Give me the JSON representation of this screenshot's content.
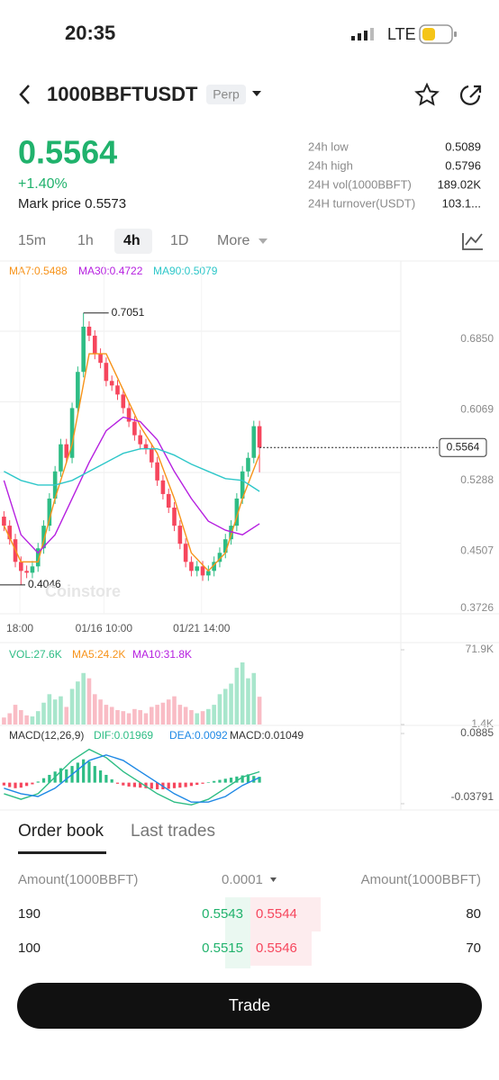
{
  "status_bar": {
    "time": "20:35",
    "network": "LTE"
  },
  "header": {
    "symbol": "1000BBFTUSDT",
    "badge": "Perp"
  },
  "ticker": {
    "price": "0.5564",
    "change": "+1.40%",
    "mark_price": "Mark price 0.5573",
    "stats": [
      {
        "label": "24h low",
        "value": "0.5089"
      },
      {
        "label": "24h high",
        "value": "0.5796"
      },
      {
        "label": "24H vol(1000BBFT)",
        "value": "189.02K"
      },
      {
        "label": "24H turnover(USDT)",
        "value": "103.1..."
      }
    ]
  },
  "intervals": {
    "items": [
      "15m",
      "1h",
      "4h",
      "1D",
      "More"
    ],
    "selected": 2
  },
  "chart_data": {
    "type": "candlestick",
    "up_color": "#2ebd85",
    "down_color": "#f6465d",
    "candles": [
      [
        0.48,
        0.486,
        0.464,
        0.47
      ],
      [
        0.47,
        0.476,
        0.449,
        0.455
      ],
      [
        0.455,
        0.461,
        0.424,
        0.43
      ],
      [
        0.43,
        0.436,
        0.4046,
        0.42
      ],
      [
        0.42,
        0.426,
        0.412,
        0.418
      ],
      [
        0.418,
        0.431,
        0.412,
        0.425
      ],
      [
        0.425,
        0.451,
        0.419,
        0.445
      ],
      [
        0.445,
        0.476,
        0.439,
        0.47
      ],
      [
        0.47,
        0.506,
        0.464,
        0.5
      ],
      [
        0.5,
        0.536,
        0.494,
        0.53
      ],
      [
        0.53,
        0.566,
        0.524,
        0.56
      ],
      [
        0.56,
        0.566,
        0.539,
        0.545
      ],
      [
        0.545,
        0.606,
        0.539,
        0.6
      ],
      [
        0.6,
        0.646,
        0.594,
        0.64
      ],
      [
        0.64,
        0.7051,
        0.634,
        0.69
      ],
      [
        0.69,
        0.696,
        0.674,
        0.68
      ],
      [
        0.68,
        0.686,
        0.654,
        0.66
      ],
      [
        0.66,
        0.666,
        0.644,
        0.65
      ],
      [
        0.65,
        0.656,
        0.624,
        0.63
      ],
      [
        0.63,
        0.636,
        0.619,
        0.625
      ],
      [
        0.625,
        0.631,
        0.609,
        0.615
      ],
      [
        0.615,
        0.621,
        0.594,
        0.6
      ],
      [
        0.6,
        0.606,
        0.579,
        0.585
      ],
      [
        0.585,
        0.591,
        0.564,
        0.57
      ],
      [
        0.57,
        0.576,
        0.554,
        0.56
      ],
      [
        0.56,
        0.566,
        0.549,
        0.555
      ],
      [
        0.555,
        0.561,
        0.534,
        0.54
      ],
      [
        0.54,
        0.546,
        0.514,
        0.52
      ],
      [
        0.52,
        0.526,
        0.499,
        0.505
      ],
      [
        0.505,
        0.511,
        0.484,
        0.49
      ],
      [
        0.49,
        0.496,
        0.464,
        0.47
      ],
      [
        0.47,
        0.476,
        0.444,
        0.45
      ],
      [
        0.45,
        0.456,
        0.424,
        0.43
      ],
      [
        0.43,
        0.436,
        0.414,
        0.42
      ],
      [
        0.42,
        0.431,
        0.414,
        0.425
      ],
      [
        0.425,
        0.431,
        0.409,
        0.415
      ],
      [
        0.415,
        0.426,
        0.409,
        0.42
      ],
      [
        0.42,
        0.436,
        0.414,
        0.43
      ],
      [
        0.43,
        0.446,
        0.424,
        0.44
      ],
      [
        0.44,
        0.461,
        0.434,
        0.455
      ],
      [
        0.455,
        0.476,
        0.449,
        0.47
      ],
      [
        0.47,
        0.506,
        0.464,
        0.5
      ],
      [
        0.5,
        0.536,
        0.494,
        0.53
      ],
      [
        0.53,
        0.551,
        0.524,
        0.545
      ],
      [
        0.545,
        0.586,
        0.539,
        0.58
      ],
      [
        0.58,
        0.586,
        0.529,
        0.5564
      ]
    ],
    "series": [
      {
        "name": "MA7:0.5488",
        "color": "#f7931a",
        "x": [
          0,
          3,
          6,
          9,
          12,
          15,
          18,
          21,
          24,
          27,
          30,
          33,
          36,
          39,
          42,
          45
        ],
        "values": [
          0.47,
          0.43,
          0.43,
          0.5,
          0.56,
          0.66,
          0.66,
          0.62,
          0.58,
          0.55,
          0.5,
          0.44,
          0.42,
          0.44,
          0.5,
          0.5488
        ]
      },
      {
        "name": "MA30:0.4722",
        "color": "#b620e0",
        "x": [
          0,
          3,
          6,
          9,
          12,
          15,
          18,
          21,
          24,
          27,
          30,
          33,
          36,
          39,
          42,
          45
        ],
        "values": [
          0.52,
          0.46,
          0.44,
          0.46,
          0.5,
          0.54,
          0.575,
          0.59,
          0.585,
          0.565,
          0.53,
          0.5,
          0.475,
          0.465,
          0.46,
          0.4722
        ]
      },
      {
        "name": "MA90:0.5079",
        "color": "#2ec7c9",
        "x": [
          0,
          3,
          6,
          9,
          12,
          15,
          18,
          21,
          24,
          27,
          30,
          33,
          36,
          39,
          42,
          45
        ],
        "values": [
          0.53,
          0.52,
          0.515,
          0.515,
          0.52,
          0.53,
          0.54,
          0.55,
          0.555,
          0.555,
          0.548,
          0.538,
          0.53,
          0.522,
          0.52,
          0.5079
        ]
      }
    ],
    "ylim": [
      0.3726,
      0.7626
    ],
    "yticks": [
      0.3726,
      0.4507,
      0.5288,
      0.6069,
      {
        "value": 0.685,
        "label": "0.6850"
      }
    ],
    "xlim": [
      -0.7,
      69.1
    ],
    "xticks": [
      {
        "value": 2.8,
        "label": "18:00"
      },
      {
        "value": 17.6,
        "label": "01/16 10:00"
      },
      {
        "value": 34.8,
        "label": "01/21 14:00"
      }
    ],
    "high_marker": 0.7051,
    "low_marker": 0.4046,
    "last_price": 0.5564,
    "grid": true,
    "volume": {
      "legend": [
        "VOL:27.6K",
        "MA5:24.2K",
        "MA10:31.8K"
      ],
      "legend_colors": [
        "#2ebd85",
        "#f7931a",
        "#b620e0"
      ],
      "values": [
        8,
        12,
        20,
        15,
        10,
        9,
        14,
        22,
        30,
        25,
        28,
        18,
        35,
        42,
        50,
        45,
        30,
        25,
        20,
        18,
        15,
        14,
        12,
        16,
        15,
        12,
        18,
        20,
        22,
        25,
        28,
        20,
        18,
        15,
        12,
        14,
        16,
        20,
        30,
        35,
        40,
        55,
        60,
        45,
        50,
        27.6
      ],
      "ylim": [
        1.4,
        71.9
      ],
      "yticks": [
        {
          "value": 71.9,
          "label": "71.9K"
        },
        {
          "value": 1.4,
          "label": "1.4K"
        }
      ]
    },
    "macd": {
      "legend": [
        "MACD(12,26,9)",
        "DIF:0.01969",
        "DEA:0.0092",
        "MACD:0.01049"
      ],
      "legend_colors": [
        "#333333",
        "#2ebd85",
        "#1e88e5",
        "#333333"
      ],
      "histogram": [
        -0.005,
        -0.008,
        -0.01,
        -0.009,
        -0.006,
        -0.003,
        0.002,
        0.008,
        0.014,
        0.02,
        0.026,
        0.024,
        0.03,
        0.036,
        0.042,
        0.038,
        0.03,
        0.022,
        0.014,
        0.006,
        -0.002,
        -0.005,
        -0.007,
        -0.008,
        -0.009,
        -0.01,
        -0.011,
        -0.012,
        -0.012,
        -0.011,
        -0.01,
        -0.009,
        -0.008,
        -0.006,
        -0.004,
        -0.002,
        0.001,
        0.003,
        0.005,
        0.007,
        0.009,
        0.011,
        0.013,
        0.015,
        0.012,
        0.01049
      ],
      "series": [
        {
          "name": "DIF",
          "color": "#2ebd85",
          "x": [
            0,
            3,
            6,
            9,
            12,
            15,
            18,
            21,
            24,
            27,
            30,
            33,
            36,
            39,
            42,
            45
          ],
          "values": [
            -0.02,
            -0.03,
            -0.02,
            0.01,
            0.04,
            0.06,
            0.045,
            0.02,
            0.0,
            -0.02,
            -0.035,
            -0.04,
            -0.03,
            -0.01,
            0.01,
            0.01969
          ]
        },
        {
          "name": "DEA",
          "color": "#1e88e5",
          "x": [
            0,
            3,
            6,
            9,
            12,
            15,
            18,
            21,
            24,
            27,
            30,
            33,
            36,
            39,
            42,
            45
          ],
          "values": [
            -0.01,
            -0.02,
            -0.025,
            -0.01,
            0.015,
            0.04,
            0.05,
            0.04,
            0.02,
            0.0,
            -0.02,
            -0.035,
            -0.035,
            -0.025,
            -0.005,
            0.0092
          ]
        }
      ],
      "ylim": [
        -0.03791,
        0.0885
      ],
      "yticks": [
        0.0885,
        -0.03791
      ]
    }
  },
  "order_book": {
    "tabs": [
      "Order book",
      "Last trades"
    ],
    "columns": [
      "Amount(1000BBFT)",
      "0.0001",
      "Amount(1000BBFT)"
    ],
    "rows": [
      [
        "190",
        "0.5543",
        "0.5544",
        "80"
      ],
      [
        "100",
        "0.5515",
        "0.5546",
        "70"
      ]
    ]
  },
  "button": "Trade"
}
